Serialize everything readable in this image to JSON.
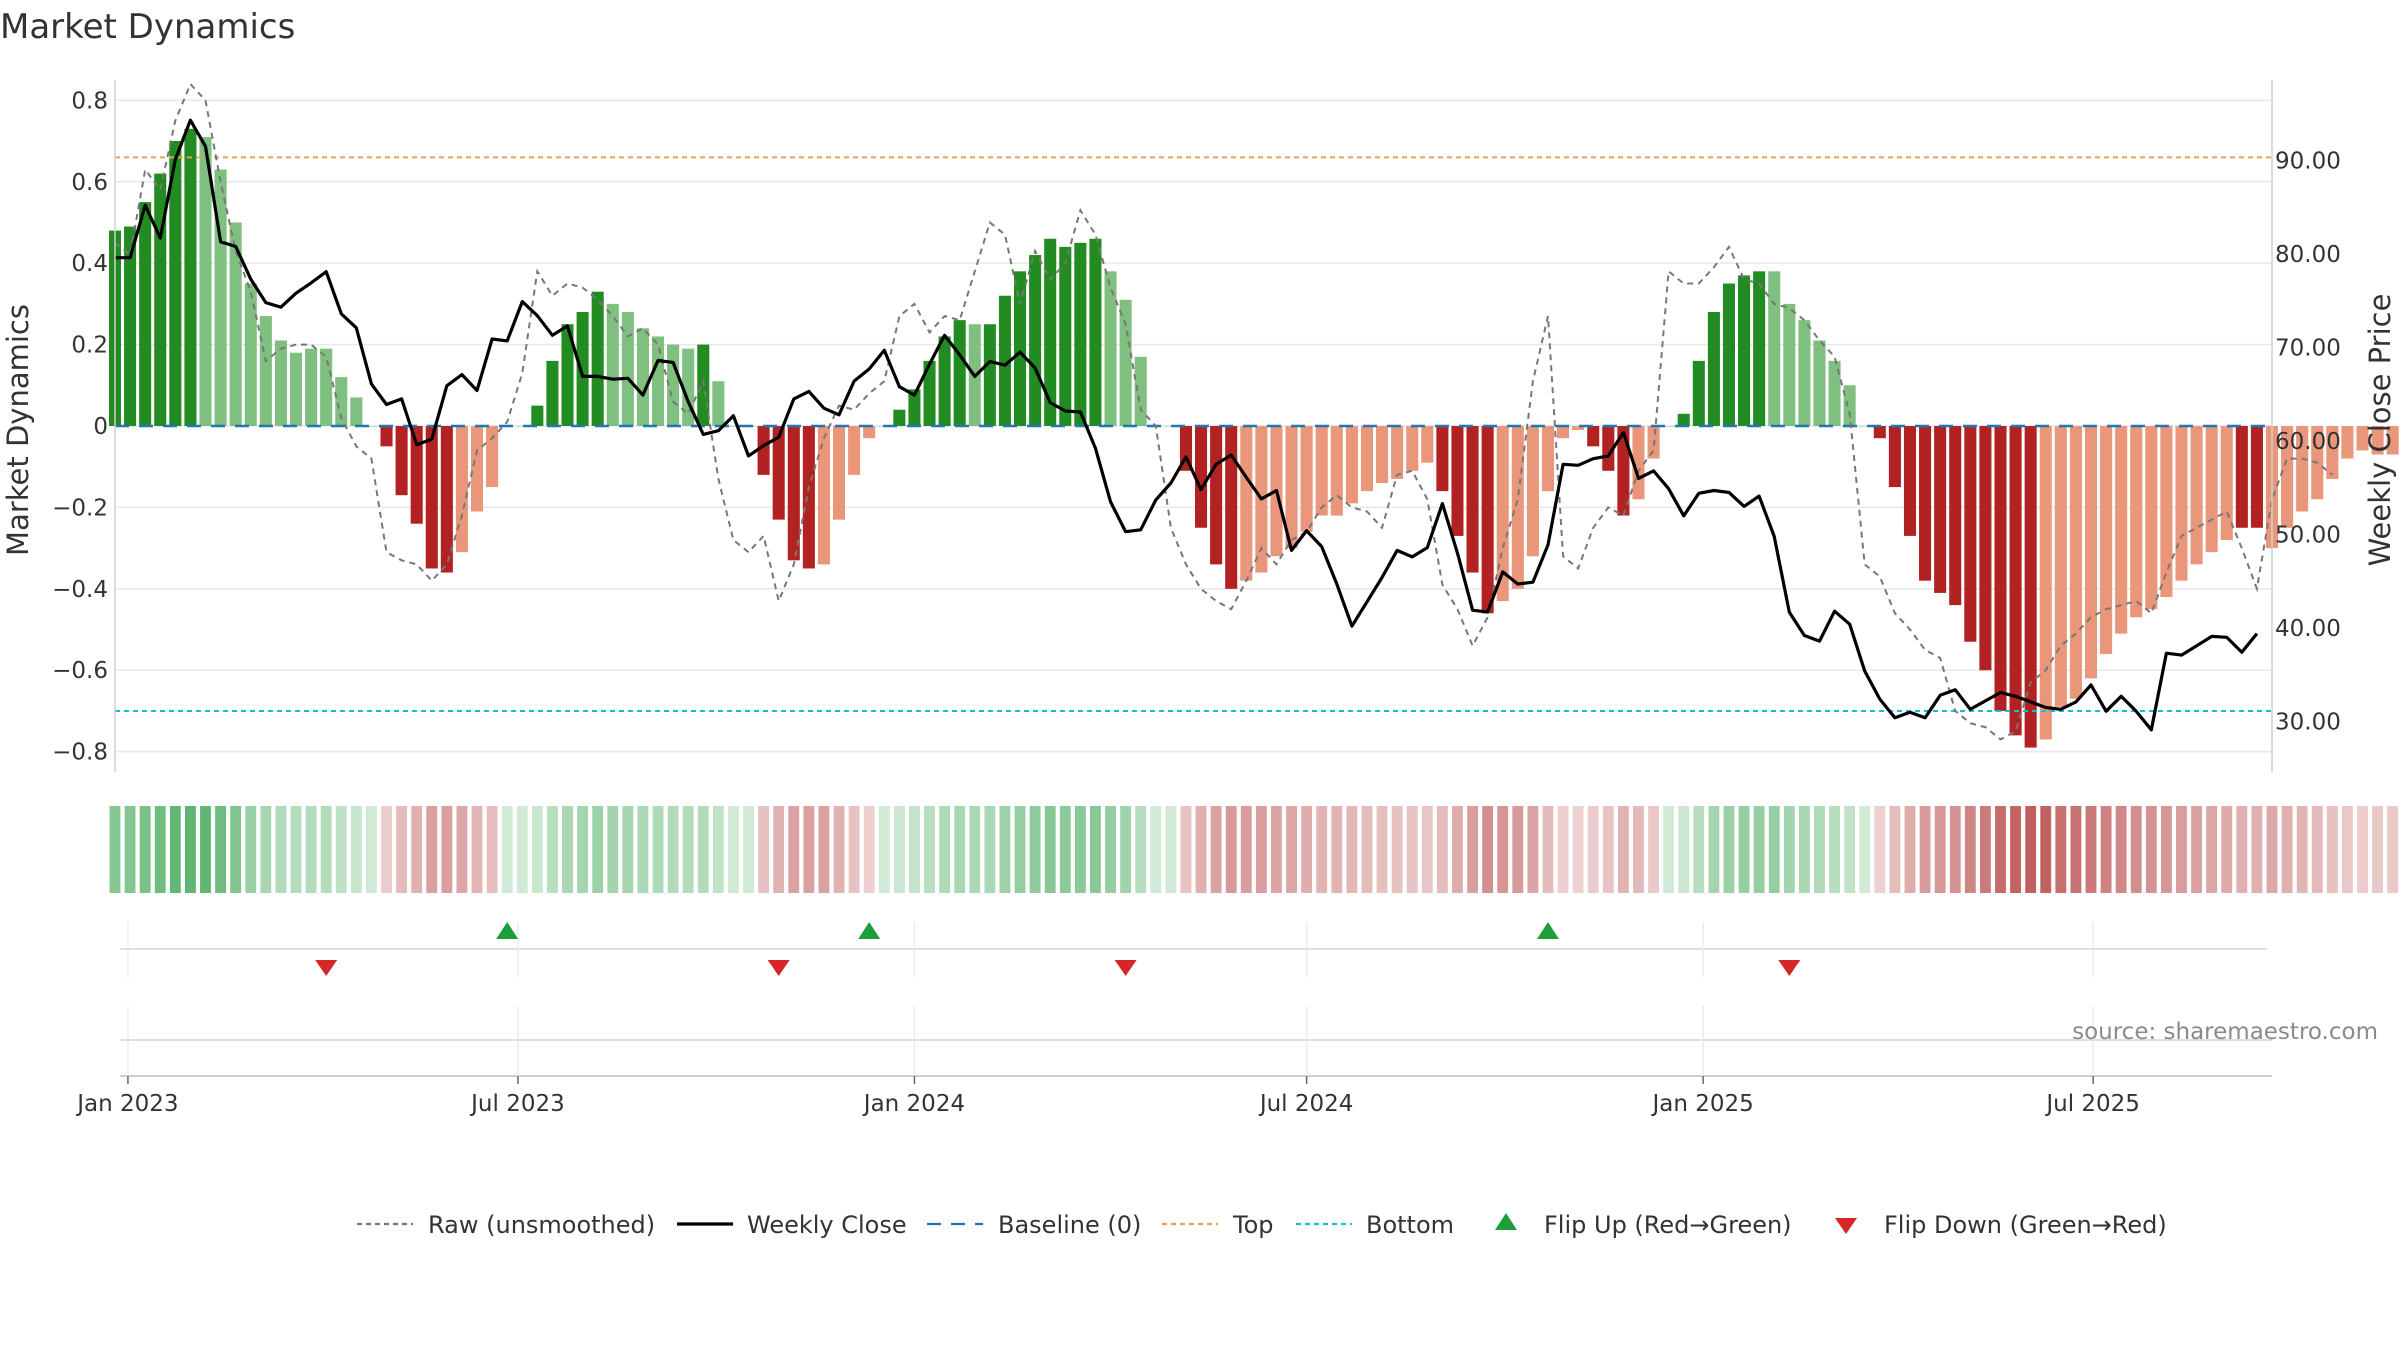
{
  "title": "Market Dynamics",
  "source": "source: sharemaestro.com",
  "colors": {
    "strong_green": "#228b22",
    "light_green": "#7fbf7f",
    "strong_red": "#b22222",
    "light_red": "#e9967a",
    "raw": "#777777",
    "close": "#000000",
    "baseline": "#1f77b4",
    "top": "#e8a25a",
    "bottom": "#17becf",
    "flip_up": "#1e9e3a",
    "flip_down": "#d62728"
  },
  "chart_data": {
    "type": "bar",
    "title": "Market Dynamics",
    "ylabel_left": "Market Dynamics",
    "ylabel_right": "Weekly Close Price",
    "ylim_left": [
      -0.85,
      0.85
    ],
    "ylim_right": [
      24.6,
      98.6
    ],
    "y_ticks_left": [
      0.8,
      0.6,
      0.4,
      0.2,
      0,
      -0.2,
      -0.4,
      -0.6,
      -0.8
    ],
    "y_tick_labels_left": [
      "0.8",
      "0.6",
      "0.4",
      "0.2",
      "0",
      "−0.2",
      "−0.4",
      "−0.6",
      "−0.8"
    ],
    "y_ticks_right": [
      90,
      80,
      70,
      60,
      50,
      40,
      30
    ],
    "y_tick_labels_right": [
      "90.00",
      "80.00",
      "70.00",
      "60.00",
      "50.00",
      "40.00",
      "30.00"
    ],
    "x_range": [
      "2022-12-26",
      "2025-09-22"
    ],
    "x_ticks": [
      {
        "date": "2023-01-01",
        "label": "Jan 2023"
      },
      {
        "date": "2023-07-01",
        "label": "Jul 2023"
      },
      {
        "date": "2024-01-01",
        "label": "Jan 2024"
      },
      {
        "date": "2024-07-01",
        "label": "Jul 2024"
      },
      {
        "date": "2025-01-01",
        "label": "Jan 2025"
      },
      {
        "date": "2025-07-01",
        "label": "Jul 2025"
      }
    ],
    "start_week": "2022-12-26",
    "top_level": 0.66,
    "bottom_level": -0.7,
    "baseline_level": 0,
    "dynamics": [
      0.48,
      0.49,
      0.55,
      0.62,
      0.7,
      0.73,
      0.71,
      0.63,
      0.5,
      0.35,
      0.27,
      0.21,
      0.18,
      0.19,
      0.19,
      0.12,
      0.07,
      0,
      -0.05,
      -0.17,
      -0.24,
      -0.35,
      -0.36,
      -0.31,
      -0.21,
      -0.15,
      0,
      0,
      0.05,
      0.16,
      0.25,
      0.28,
      0.33,
      0.3,
      0.28,
      0.24,
      0.22,
      0.2,
      0.19,
      0.2,
      0.11,
      0,
      0,
      -0.12,
      -0.23,
      -0.33,
      -0.35,
      -0.34,
      -0.23,
      -0.12,
      -0.03,
      0,
      0.04,
      0.09,
      0.16,
      0.22,
      0.26,
      0.25,
      0.25,
      0.32,
      0.38,
      0.42,
      0.46,
      0.44,
      0.45,
      0.46,
      0.38,
      0.31,
      0.17,
      0,
      0,
      -0.11,
      -0.25,
      -0.34,
      -0.4,
      -0.38,
      -0.36,
      -0.32,
      -0.3,
      -0.26,
      -0.22,
      -0.22,
      -0.19,
      -0.16,
      -0.14,
      -0.13,
      -0.11,
      -0.09,
      -0.16,
      -0.27,
      -0.36,
      -0.46,
      -0.43,
      -0.4,
      -0.32,
      -0.16,
      -0.03,
      -0.01,
      -0.05,
      -0.11,
      -0.22,
      -0.18,
      -0.08,
      0,
      0.03,
      0.16,
      0.28,
      0.35,
      0.37,
      0.38,
      0.38,
      0.3,
      0.26,
      0.21,
      0.16,
      0.1,
      0,
      -0.03,
      -0.15,
      -0.27,
      -0.38,
      -0.41,
      -0.44,
      -0.53,
      -0.6,
      -0.7,
      -0.76,
      -0.79,
      -0.77,
      -0.69,
      -0.67,
      -0.62,
      -0.56,
      -0.51,
      -0.47,
      -0.45,
      -0.42,
      -0.38,
      -0.34,
      -0.31,
      -0.28,
      -0.25,
      -0.25,
      -0.3,
      -0.25,
      -0.21,
      -0.18,
      -0.13,
      -0.08,
      -0.06,
      -0.07,
      -0.07
    ],
    "strong": [
      1,
      1,
      1,
      1,
      1,
      1,
      0,
      0,
      0,
      0,
      0,
      0,
      0,
      0,
      0,
      0,
      0,
      0,
      1,
      1,
      1,
      1,
      1,
      0,
      0,
      0,
      0,
      0,
      1,
      1,
      1,
      1,
      1,
      0,
      0,
      0,
      0,
      0,
      0,
      1,
      0,
      0,
      0,
      1,
      1,
      1,
      1,
      0,
      0,
      0,
      0,
      0,
      1,
      1,
      1,
      1,
      1,
      0,
      1,
      1,
      1,
      1,
      1,
      1,
      1,
      1,
      0,
      0,
      0,
      0,
      0,
      1,
      1,
      1,
      1,
      0,
      0,
      0,
      0,
      0,
      0,
      0,
      0,
      0,
      0,
      0,
      0,
      0,
      1,
      1,
      1,
      1,
      0,
      0,
      0,
      0,
      0,
      0,
      1,
      1,
      1,
      0,
      0,
      0,
      1,
      1,
      1,
      1,
      1,
      1,
      0,
      0,
      0,
      0,
      0,
      0,
      0,
      1,
      1,
      1,
      1,
      1,
      1,
      1,
      1,
      1,
      1,
      1,
      0,
      0,
      0,
      0,
      0,
      0,
      0,
      0,
      0,
      0,
      0,
      0,
      0,
      1,
      1,
      0,
      0,
      0,
      0,
      0,
      0,
      0,
      0
    ],
    "raw": [
      0.45,
      0.42,
      0.63,
      0.58,
      0.75,
      0.84,
      0.8,
      0.6,
      0.43,
      0.33,
      0.16,
      0.19,
      0.2,
      0.2,
      0.17,
      0.02,
      -0.05,
      -0.08,
      -0.31,
      -0.33,
      -0.34,
      -0.38,
      -0.34,
      -0.22,
      -0.06,
      -0.03,
      0.01,
      0.13,
      0.38,
      0.32,
      0.35,
      0.34,
      0.31,
      0.27,
      0.22,
      0.24,
      0.2,
      0.06,
      0.03,
      0.11,
      -0.13,
      -0.28,
      -0.31,
      -0.27,
      -0.43,
      -0.34,
      -0.15,
      -0.03,
      0.05,
      0.04,
      0.08,
      0.11,
      0.27,
      0.3,
      0.23,
      0.27,
      0.26,
      0.38,
      0.5,
      0.47,
      0.3,
      0.43,
      0.36,
      0.4,
      0.53,
      0.47,
      0.34,
      0.25,
      0.04,
      0,
      -0.25,
      -0.34,
      -0.4,
      -0.43,
      -0.45,
      -0.38,
      -0.3,
      -0.34,
      -0.28,
      -0.26,
      -0.2,
      -0.17,
      -0.2,
      -0.21,
      -0.25,
      -0.12,
      -0.11,
      -0.18,
      -0.39,
      -0.45,
      -0.54,
      -0.47,
      -0.3,
      -0.18,
      0.11,
      0.27,
      -0.32,
      -0.35,
      -0.25,
      -0.2,
      -0.22,
      -0.11,
      -0.06,
      0.38,
      0.35,
      0.35,
      0.39,
      0.44,
      0.36,
      0.35,
      0.3,
      0.29,
      0.26,
      0.21,
      0.17,
      0.03,
      -0.34,
      -0.37,
      -0.46,
      -0.5,
      -0.55,
      -0.57,
      -0.7,
      -0.73,
      -0.74,
      -0.77,
      -0.75,
      -0.63,
      -0.6,
      -0.54,
      -0.51,
      -0.47,
      -0.45,
      -0.44,
      -0.43,
      -0.46,
      -0.36,
      -0.27,
      -0.25,
      -0.23,
      -0.21,
      -0.3,
      -0.4,
      -0.18,
      -0.08,
      -0.08,
      -0.09,
      -0.12
    ],
    "close": [
      79.6,
      79.6,
      85.2,
      81.7,
      90.1,
      94.3,
      91.5,
      81.3,
      80.8,
      77.3,
      74.8,
      74.3,
      75.8,
      76.9,
      78.1,
      73.6,
      72.1,
      66.1,
      63.9,
      64.5,
      59.6,
      60.2,
      65.9,
      67.1,
      65.4,
      70.9,
      70.7,
      74.9,
      73.4,
      71.3,
      72.3,
      66.9,
      66.9,
      66.6,
      66.7,
      64.9,
      68.6,
      68.4,
      64.2,
      60.7,
      61.1,
      62.7,
      58.4,
      59.5,
      60.4,
      64.5,
      65.3,
      63.5,
      62.8,
      66.4,
      67.7,
      69.7,
      65.8,
      64.9,
      68.2,
      71.3,
      69.2,
      66.9,
      68.5,
      68.1,
      69.5,
      67.8,
      64.1,
      63.2,
      63.1,
      59.2,
      53.5,
      50.3,
      50.5,
      53.7,
      55.5,
      58.3,
      54.8,
      57.5,
      58.5,
      56.1,
      53.8,
      54.7,
      48.3,
      50.4,
      48.7,
      44.7,
      40.2,
      42.8,
      45.4,
      48.3,
      47.6,
      48.6,
      53.3,
      48,
      41.9,
      41.7,
      46,
      44.7,
      44.9,
      48.9,
      57.5,
      57.4,
      58.1,
      58.4,
      60.9,
      56,
      56.8,
      54.9,
      52,
      54.4,
      54.7,
      54.5,
      53,
      54.1,
      49.8,
      41.7,
      39.2,
      38.6,
      41.8,
      40.4,
      35.4,
      32.4,
      30.4,
      31,
      30.4,
      32.8,
      33.4,
      31.3,
      32.2,
      33.1,
      32.7,
      32.1,
      31.5,
      31.3,
      32.1,
      33.9,
      31.1,
      32.7,
      31.1,
      29.1,
      37.3,
      37.1,
      38.1,
      39.1,
      39,
      37.4,
      39.4
    ],
    "flip_up": [
      "2023-06-26",
      "2023-12-11",
      "2024-10-21"
    ],
    "flip_down": [
      "2023-04-03",
      "2023-10-30",
      "2024-04-08",
      "2025-02-10"
    ],
    "legend": [
      {
        "key": "raw",
        "label": "Raw (unsmoothed)"
      },
      {
        "key": "close",
        "label": "Weekly Close"
      },
      {
        "key": "baseline",
        "label": "Baseline (0)"
      },
      {
        "key": "top",
        "label": "Top"
      },
      {
        "key": "bottom",
        "label": "Bottom"
      },
      {
        "key": "flip_up",
        "label": "Flip Up (Red→Green)"
      },
      {
        "key": "flip_down",
        "label": "Flip Down (Green→Red)"
      }
    ]
  }
}
